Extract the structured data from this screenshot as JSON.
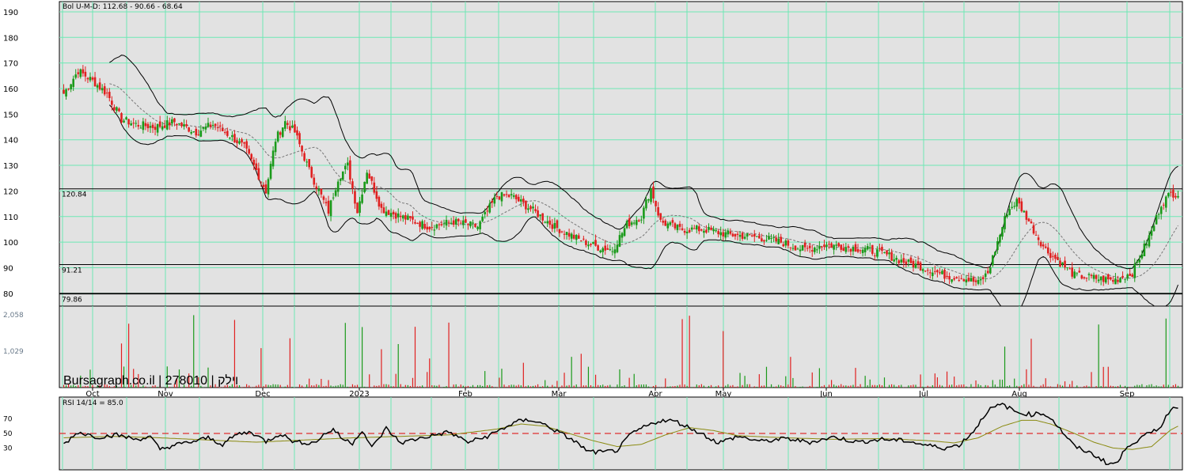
{
  "chart_data": [
    {
      "type": "candlestick",
      "indicator_label": "Bol U-M-D: 112.68 - 90.66 - 68.64",
      "ylim": [
        75,
        194
      ],
      "y_ticks": [
        "190",
        "180",
        "170",
        "160",
        "150",
        "140",
        "130",
        "120",
        "110",
        "100",
        "90",
        "80"
      ],
      "y_tick_values": [
        190,
        180,
        170,
        160,
        150,
        140,
        130,
        120,
        110,
        100,
        90,
        80
      ],
      "horizontal_lines": [
        {
          "label": "120.84",
          "value": 120.84
        },
        {
          "label": "91.21",
          "value": 91.21
        },
        {
          "label": "79.86",
          "value": 79.86
        }
      ],
      "colors": {
        "up": "#1a9a1a",
        "down": "#e02020",
        "bands": "#000000",
        "middle": "#777777",
        "grid": "#6ee8b4",
        "background": "#e2e2e2"
      },
      "anchors": [
        [
          0,
          158
        ],
        [
          6,
          167
        ],
        [
          12,
          163
        ],
        [
          18,
          158
        ],
        [
          24,
          148
        ],
        [
          30,
          146
        ],
        [
          38,
          145
        ],
        [
          46,
          147
        ],
        [
          55,
          143
        ],
        [
          62,
          146
        ],
        [
          70,
          141
        ],
        [
          75,
          137
        ],
        [
          80,
          128
        ],
        [
          84,
          120
        ],
        [
          88,
          140
        ],
        [
          92,
          147
        ],
        [
          96,
          143
        ],
        [
          102,
          128
        ],
        [
          106,
          120
        ],
        [
          110,
          112
        ],
        [
          114,
          125
        ],
        [
          118,
          130
        ],
        [
          122,
          112
        ],
        [
          126,
          128
        ],
        [
          132,
          113
        ],
        [
          140,
          110
        ],
        [
          152,
          106
        ],
        [
          162,
          108
        ],
        [
          172,
          106
        ],
        [
          176,
          112
        ],
        [
          180,
          118
        ],
        [
          186,
          118
        ],
        [
          194,
          113
        ],
        [
          204,
          106
        ],
        [
          214,
          101
        ],
        [
          222,
          98
        ],
        [
          228,
          97
        ],
        [
          234,
          107
        ],
        [
          240,
          110
        ],
        [
          244,
          121
        ],
        [
          248,
          108
        ],
        [
          256,
          105
        ],
        [
          266,
          105
        ],
        [
          276,
          103
        ],
        [
          288,
          102
        ],
        [
          298,
          100
        ],
        [
          308,
          97
        ],
        [
          316,
          99
        ],
        [
          326,
          98
        ],
        [
          334,
          97
        ],
        [
          342,
          95
        ],
        [
          350,
          92
        ],
        [
          358,
          90
        ],
        [
          366,
          87
        ],
        [
          374,
          86
        ],
        [
          380,
          84
        ],
        [
          384,
          88
        ],
        [
          388,
          100
        ],
        [
          392,
          112
        ],
        [
          396,
          116
        ],
        [
          400,
          110
        ],
        [
          404,
          103
        ],
        [
          408,
          97
        ],
        [
          414,
          92
        ],
        [
          420,
          87
        ],
        [
          428,
          86
        ],
        [
          436,
          85
        ],
        [
          444,
          88
        ],
        [
          448,
          96
        ],
        [
          452,
          104
        ],
        [
          456,
          115
        ],
        [
          460,
          119
        ]
      ],
      "volume_ticks": [
        "2,058",
        "1,029"
      ],
      "volume_tick_values": [
        2058,
        1029
      ],
      "volume_max": 2300,
      "watermark": "Bursagraph.co.il | 278010 | וילק",
      "x_ticks": [
        "Oct",
        "Nov",
        "Dec",
        "2023",
        "Feb",
        "Mar",
        "Apr",
        "May",
        "Jun",
        "Jul",
        "Aug",
        "Sep"
      ],
      "bars": 464
    },
    {
      "type": "line",
      "label": "RSI 14/14 = 85.0",
      "ylim": [
        0,
        100
      ],
      "y_ticks": [
        "70",
        "50",
        "30"
      ],
      "y_tick_values": [
        70,
        50,
        30
      ],
      "reference_line": 50,
      "anchors": [
        [
          0,
          35
        ],
        [
          6,
          52
        ],
        [
          14,
          45
        ],
        [
          22,
          48
        ],
        [
          30,
          42
        ],
        [
          36,
          45
        ],
        [
          40,
          28
        ],
        [
          46,
          34
        ],
        [
          54,
          39
        ],
        [
          60,
          44
        ],
        [
          66,
          35
        ],
        [
          72,
          49
        ],
        [
          78,
          52
        ],
        [
          84,
          39
        ],
        [
          90,
          50
        ],
        [
          96,
          38
        ],
        [
          104,
          37
        ],
        [
          108,
          48
        ],
        [
          112,
          56
        ],
        [
          116,
          42
        ],
        [
          120,
          37
        ],
        [
          124,
          55
        ],
        [
          128,
          30
        ],
        [
          134,
          57
        ],
        [
          140,
          37
        ],
        [
          150,
          45
        ],
        [
          160,
          52
        ],
        [
          168,
          38
        ],
        [
          176,
          46
        ],
        [
          182,
          56
        ],
        [
          188,
          66
        ],
        [
          194,
          69
        ],
        [
          200,
          62
        ],
        [
          206,
          51
        ],
        [
          212,
          40
        ],
        [
          218,
          25
        ],
        [
          224,
          24
        ],
        [
          230,
          27
        ],
        [
          236,
          50
        ],
        [
          242,
          60
        ],
        [
          248,
          68
        ],
        [
          254,
          67
        ],
        [
          260,
          58
        ],
        [
          266,
          48
        ],
        [
          272,
          37
        ],
        [
          280,
          46
        ],
        [
          290,
          39
        ],
        [
          300,
          43
        ],
        [
          310,
          38
        ],
        [
          320,
          45
        ],
        [
          330,
          38
        ],
        [
          340,
          42
        ],
        [
          350,
          40
        ],
        [
          358,
          34
        ],
        [
          366,
          30
        ],
        [
          372,
          34
        ],
        [
          378,
          53
        ],
        [
          384,
          82
        ],
        [
          390,
          90
        ],
        [
          396,
          79
        ],
        [
          402,
          76
        ],
        [
          406,
          78
        ],
        [
          410,
          72
        ],
        [
          416,
          48
        ],
        [
          420,
          32
        ],
        [
          426,
          24
        ],
        [
          430,
          17
        ],
        [
          434,
          8
        ],
        [
          438,
          10
        ],
        [
          442,
          34
        ],
        [
          446,
          40
        ],
        [
          452,
          52
        ],
        [
          456,
          60
        ],
        [
          460,
          85
        ],
        [
          462,
          85
        ]
      ],
      "signal_anchors": [
        [
          0,
          44
        ],
        [
          20,
          46
        ],
        [
          40,
          44
        ],
        [
          60,
          41
        ],
        [
          80,
          38
        ],
        [
          100,
          41
        ],
        [
          120,
          44
        ],
        [
          140,
          46
        ],
        [
          160,
          48
        ],
        [
          170,
          52
        ],
        [
          180,
          56
        ],
        [
          190,
          63
        ],
        [
          200,
          60
        ],
        [
          210,
          50
        ],
        [
          220,
          40
        ],
        [
          230,
          32
        ],
        [
          240,
          35
        ],
        [
          250,
          48
        ],
        [
          260,
          58
        ],
        [
          270,
          54
        ],
        [
          280,
          47
        ],
        [
          300,
          44
        ],
        [
          320,
          42
        ],
        [
          340,
          43
        ],
        [
          360,
          40
        ],
        [
          370,
          37
        ],
        [
          380,
          44
        ],
        [
          390,
          60
        ],
        [
          398,
          68
        ],
        [
          404,
          68
        ],
        [
          410,
          63
        ],
        [
          420,
          50
        ],
        [
          428,
          38
        ],
        [
          436,
          30
        ],
        [
          444,
          28
        ],
        [
          452,
          32
        ],
        [
          460,
          55
        ],
        [
          463,
          60
        ]
      ],
      "colors": {
        "rsi": "#000000",
        "signal": "#8a8a10",
        "reference": "#e03030"
      }
    }
  ]
}
